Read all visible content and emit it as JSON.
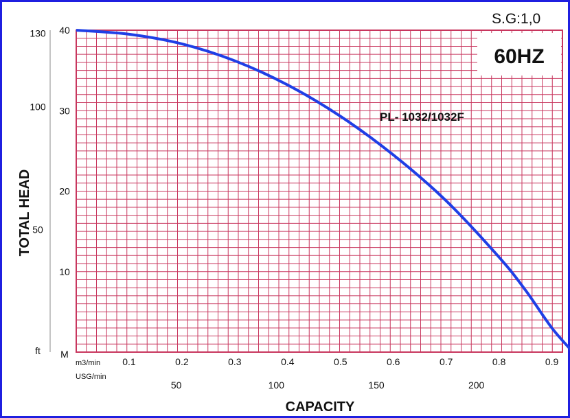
{
  "chart_data": {
    "type": "line",
    "spec_label": "S.G:1,0",
    "frequency_label": "60HZ",
    "xlabel": "CAPACITY",
    "ylabel": "TOTAL  HEAD",
    "y_unit_primary": "M",
    "y_unit_secondary": "ft",
    "x_unit_primary": "m3/min",
    "x_unit_secondary": "USG/min",
    "xlim": [
      0,
      0.92
    ],
    "ylim": [
      0,
      40
    ],
    "grid": true,
    "colors": {
      "grid": "#c8365e",
      "curve": "#1f3fe6",
      "frame": "#1f1fe0"
    },
    "y_ticks_m": [
      "10",
      "20",
      "30",
      "40"
    ],
    "y_ticks_ft": [
      "50",
      "100",
      "130"
    ],
    "x_ticks_m3min": [
      "0.1",
      "0.2",
      "0.3",
      "0.4",
      "0.5",
      "0.6",
      "0.7",
      "0.8",
      "0.9"
    ],
    "x_ticks_usgmin": [
      "50",
      "100",
      "150",
      "200"
    ],
    "series": [
      {
        "name": "PL- 1032/1032F",
        "x": [
          0,
          0.1,
          0.2,
          0.3,
          0.4,
          0.5,
          0.6,
          0.7,
          0.8,
          0.85,
          0.9,
          0.94
        ],
        "y": [
          40,
          39.5,
          38.3,
          36.2,
          33.2,
          29.3,
          24.5,
          18.8,
          11.8,
          7.7,
          3.0,
          0
        ]
      }
    ]
  }
}
